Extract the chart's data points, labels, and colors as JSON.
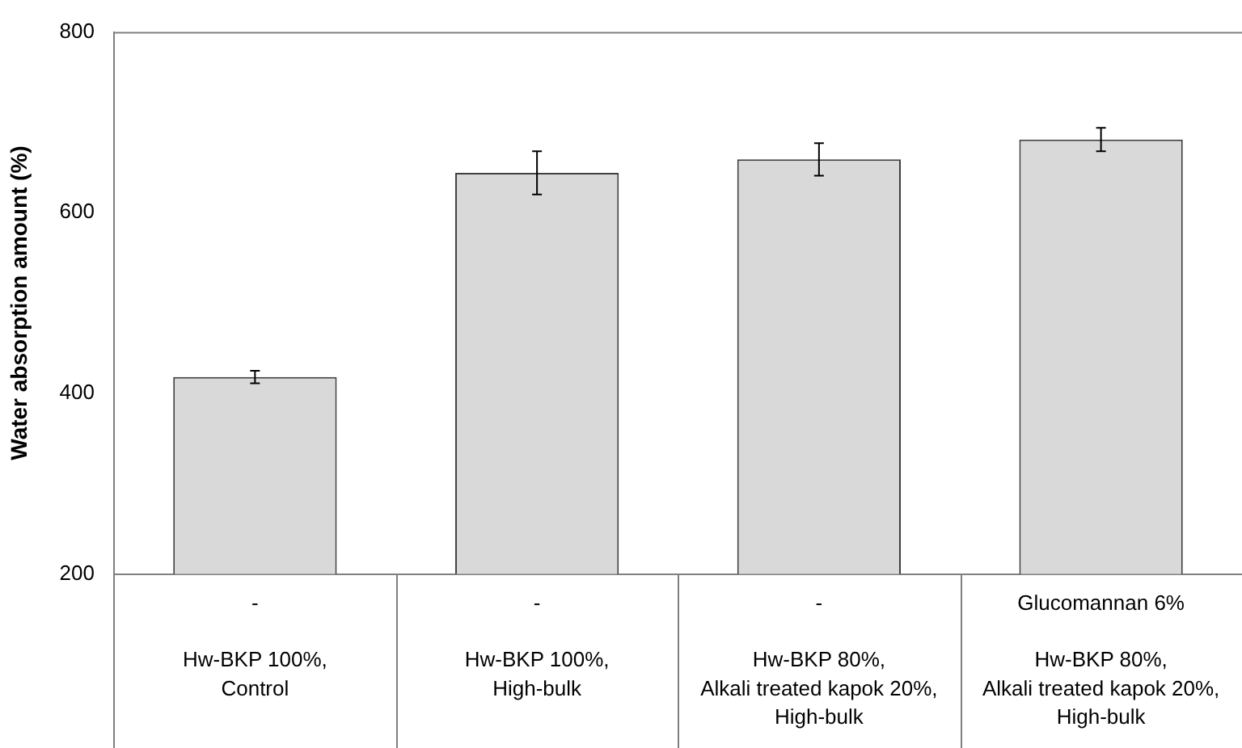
{
  "chart_data": {
    "type": "bar",
    "ylabel": "Water absorption amount (%)",
    "categories": [
      "-\n\nHw-BKP 100%,\nControl",
      "-\n\nHw-BKP 100%,\nHigh-bulk",
      "-\n\nHw-BKP 80%,\nAlkali treated kapok 20%,\nHigh-bulk",
      "Glucomannan 6%\n\nHw-BKP 80%,\nAlkali treated kapok 20%,\nHigh-bulk"
    ],
    "values": [
      418,
      644,
      659,
      681
    ],
    "errors": [
      7,
      24,
      18,
      13
    ],
    "color": "#d9d9d9",
    "ylim": [
      200,
      800
    ],
    "yticks": [
      200,
      400,
      600,
      800
    ],
    "grid": false,
    "legend": false
  }
}
